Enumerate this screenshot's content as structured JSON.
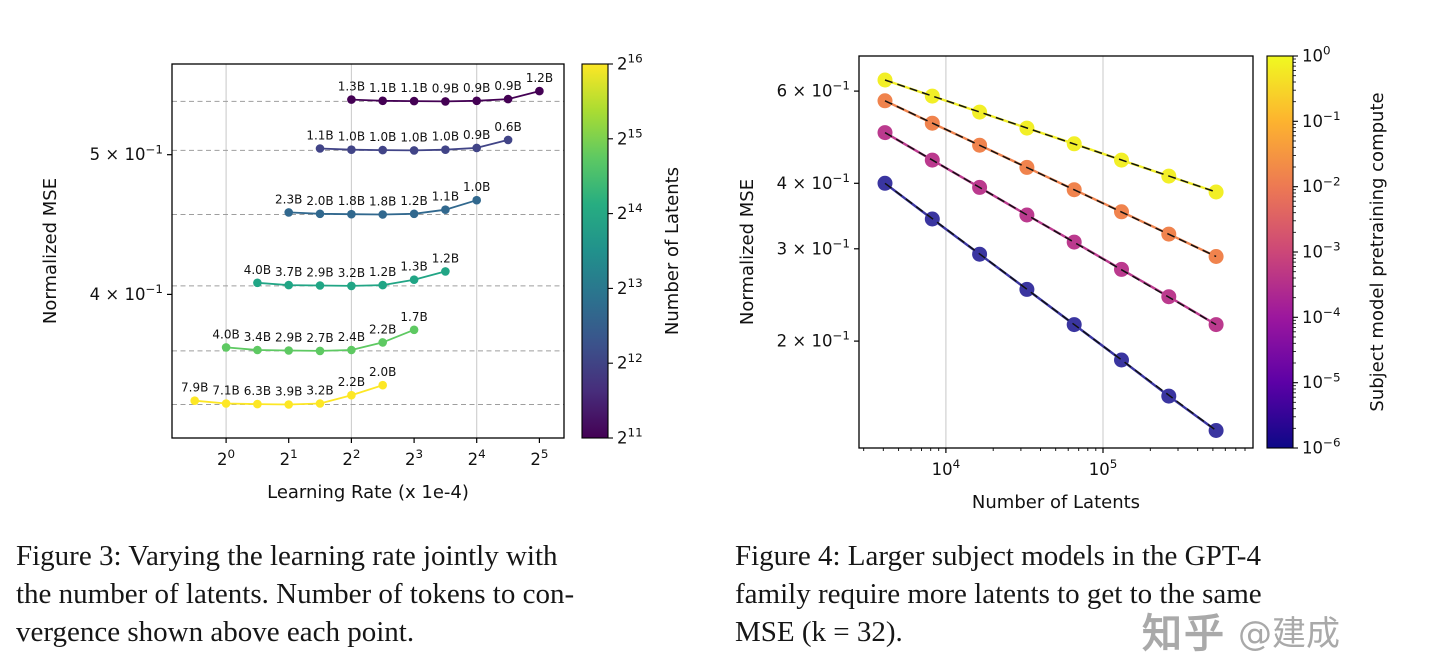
{
  "page": {
    "background": "#ffffff"
  },
  "watermark": {
    "logo": "知乎",
    "author": "@建成"
  },
  "figure3": {
    "caption_lines": [
      "Figure 3: Varying the learning rate jointly with",
      "the number of latents. Number of tokens to con-",
      "vergence shown above each point."
    ]
  },
  "figure4": {
    "caption_lines": [
      "Figure 4: Larger subject models in the GPT-4",
      "family require more latents to get to the same",
      "MSE (k = 32)."
    ]
  },
  "chart_data": [
    {
      "type": "line",
      "title": "",
      "xlabel": "Learning Rate (x 1e-4)",
      "ylabel": "Normalized MSE",
      "x_scale": "log",
      "y_scale": "log",
      "xlim": [
        0.55,
        42
      ],
      "ylim": [
        0.318,
        0.578
      ],
      "x_ticks": [
        {
          "label": "2^0",
          "value": 1
        },
        {
          "label": "2^1",
          "value": 2
        },
        {
          "label": "2^2",
          "value": 4
        },
        {
          "label": "2^3",
          "value": 8
        },
        {
          "label": "2^4",
          "value": 16
        },
        {
          "label": "2^5",
          "value": 32
        }
      ],
      "y_ticks": [
        {
          "label": "5 × 10^−1",
          "value": 0.5
        },
        {
          "label": "4 × 10^−1",
          "value": 0.4
        }
      ],
      "grid_x": [
        1,
        4,
        16
      ],
      "dashed_y": [
        0.5445,
        0.5035,
        0.4545,
        0.4055,
        0.3655,
        0.3355
      ],
      "colorbar": {
        "label": "Number of Latents",
        "ticks": [
          "2^11",
          "2^12",
          "2^13",
          "2^14",
          "2^15",
          "2^16"
        ],
        "gradient": [
          "#440154",
          "#472d7b",
          "#3b528b",
          "#2c728e",
          "#21918c",
          "#27ad81",
          "#5ec962",
          "#aadc32",
          "#fde725"
        ]
      },
      "series": [
        {
          "name": "latents 2^16 (yellow)",
          "color": "#fde725",
          "x": [
            0.707,
            1,
            1.414,
            2,
            2.828,
            4,
            5.657
          ],
          "y": [
            0.3375,
            0.336,
            0.3357,
            0.3355,
            0.336,
            0.3405,
            0.346
          ],
          "point_labels": [
            "7.9B",
            "7.1B",
            "6.3B",
            "3.9B",
            "3.2B",
            "2.2B",
            "2.0B"
          ]
        },
        {
          "name": "latents 2^15 (green)",
          "color": "#5ec962",
          "x": [
            1,
            1.414,
            2,
            2.828,
            4,
            5.657,
            8
          ],
          "y": [
            0.3675,
            0.366,
            0.3657,
            0.3655,
            0.366,
            0.3705,
            0.378
          ],
          "point_labels": [
            "4.0B",
            "3.4B",
            "2.9B",
            "2.7B",
            "2.4B",
            "2.2B",
            "1.7B"
          ]
        },
        {
          "name": "latents 2^14 (teal-green)",
          "color": "#21a585",
          "x": [
            1.414,
            2,
            2.828,
            4,
            5.657,
            8,
            11.314
          ],
          "y": [
            0.4075,
            0.406,
            0.4057,
            0.4055,
            0.406,
            0.4095,
            0.415
          ],
          "point_labels": [
            "4.0B",
            "3.7B",
            "2.9B",
            "3.2B",
            "1.2B",
            "1.3B",
            "1.2B"
          ]
        },
        {
          "name": "latents 2^13 (teal-blue)",
          "color": "#31688e",
          "x": [
            2,
            2.828,
            4,
            5.657,
            8,
            11.314,
            16
          ],
          "y": [
            0.456,
            0.455,
            0.4547,
            0.4545,
            0.455,
            0.458,
            0.465
          ],
          "point_labels": [
            "2.3B",
            "2.0B",
            "1.8B",
            "1.8B",
            "1.2B",
            "1.1B",
            "1.0B"
          ]
        },
        {
          "name": "latents 2^12 (indigo)",
          "color": "#414487",
          "x": [
            2.828,
            4,
            5.657,
            8,
            11.314,
            16,
            22.627
          ],
          "y": [
            0.505,
            0.504,
            0.5037,
            0.5035,
            0.504,
            0.5055,
            0.512
          ],
          "point_labels": [
            "1.1B",
            "1.0B",
            "1.0B",
            "1.0B",
            "1.0B",
            "0.9B",
            "0.6B"
          ]
        },
        {
          "name": "latents 2^11 (dark purple)",
          "color": "#440154",
          "x": [
            4,
            5.657,
            8,
            11.314,
            16,
            22.627,
            32
          ],
          "y": [
            0.546,
            0.545,
            0.5447,
            0.5445,
            0.545,
            0.5465,
            0.5535
          ],
          "point_labels": [
            "1.3B",
            "1.1B",
            "1.1B",
            "0.9B",
            "0.9B",
            "0.9B",
            "1.2B"
          ]
        }
      ]
    },
    {
      "type": "line",
      "title": "",
      "xlabel": "Number of Latents",
      "ylabel": "Normalized MSE",
      "x_scale": "log",
      "y_scale": "log",
      "xlim": [
        2800,
        900000
      ],
      "ylim": [
        0.125,
        0.7
      ],
      "x": [
        4096,
        8192,
        16384,
        32768,
        65536,
        131072,
        262144,
        524288
      ],
      "x_ticks": [
        {
          "label": "10^4",
          "value": 10000
        },
        {
          "label": "10^5",
          "value": 100000
        }
      ],
      "y_ticks": [
        {
          "label": "6 × 10^−1",
          "value": 0.6
        },
        {
          "label": "4 × 10^−1",
          "value": 0.4
        },
        {
          "label": "3 × 10^−1",
          "value": 0.3
        },
        {
          "label": "2 × 10^−1",
          "value": 0.2
        }
      ],
      "grid_x": [
        10000,
        100000
      ],
      "colorbar": {
        "label": "Subject model pretraining compute",
        "ticks": [
          "10^−6",
          "10^−5",
          "10^−4",
          "10^−3",
          "10^−2",
          "10^−1",
          "10^0"
        ],
        "gradient": [
          "#0d0887",
          "#5c01a6",
          "#9c179e",
          "#cc4778",
          "#ed7953",
          "#fdb32f",
          "#f0f921"
        ]
      },
      "series": [
        {
          "name": "largest subject model (yellow, compute 10^0)",
          "color": "#f2ef27",
          "fit": "dashed",
          "y": [
            0.63,
            0.587,
            0.547,
            0.51,
            0.476,
            0.443,
            0.413,
            0.385
          ]
        },
        {
          "name": "subject model (orange)",
          "color": "#f0834d",
          "fit": "dashed",
          "y": [
            0.575,
            0.521,
            0.473,
            0.429,
            0.389,
            0.353,
            0.32,
            0.29
          ]
        },
        {
          "name": "subject model (magenta)",
          "color": "#bb3a8e",
          "fit": "dashed",
          "y": [
            0.5,
            0.443,
            0.393,
            0.348,
            0.309,
            0.274,
            0.243,
            0.215
          ]
        },
        {
          "name": "smallest subject model (navy)",
          "color": "#3a35a0",
          "fit": "dashed",
          "y": [
            0.4,
            0.342,
            0.293,
            0.251,
            0.215,
            0.184,
            0.157,
            0.135
          ]
        }
      ]
    }
  ]
}
